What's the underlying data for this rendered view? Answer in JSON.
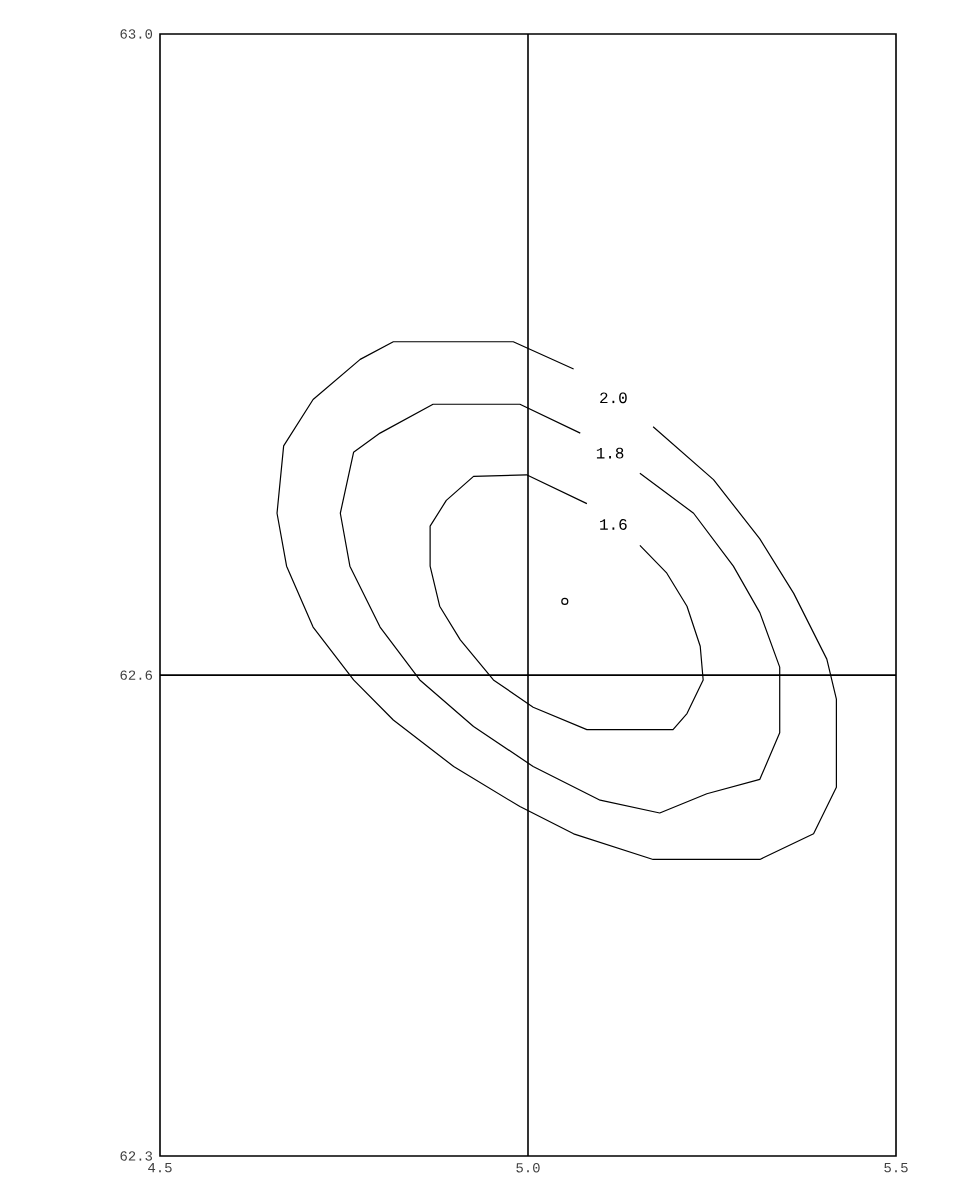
{
  "chart_data": {
    "type": "line",
    "marker": "none",
    "color": "#000000",
    "xlim": [
      4.5,
      5.5
    ],
    "ylim": [
      62.3,
      63.0
    ],
    "xticks": [
      4.5,
      {
        "value": 5.0,
        "label": "5.0"
      },
      5.5
    ],
    "yticks": [
      62.3,
      62.6,
      {
        "value": 63.0,
        "label": "63.0"
      }
    ],
    "ref_lines": [
      {
        "axis": "x",
        "value": 5.0
      },
      {
        "axis": "y",
        "value": 62.6
      }
    ],
    "series": [
      {
        "name": "2.0",
        "x": [
          5.17,
          5.252,
          5.315,
          5.361,
          5.406,
          5.419,
          5.419,
          5.388,
          5.315,
          5.17,
          5.062,
          4.989,
          4.899,
          4.817,
          4.763,
          4.708,
          4.672,
          4.659,
          4.668,
          4.708,
          4.772,
          4.817,
          4.98,
          5.062
        ],
        "values": [
          62.755,
          62.722,
          62.685,
          62.651,
          62.61,
          62.585,
          62.53,
          62.501,
          62.485,
          62.485,
          62.501,
          62.518,
          62.543,
          62.572,
          62.597,
          62.63,
          62.668,
          62.701,
          62.743,
          62.772,
          62.797,
          62.808,
          62.808,
          62.791
        ]
      },
      {
        "name": "1.8",
        "x": [
          5.152,
          5.225,
          5.279,
          5.315,
          5.342,
          5.342,
          5.315,
          5.243,
          5.179,
          5.098,
          5.007,
          4.926,
          4.853,
          4.799,
          4.758,
          4.745,
          4.763,
          4.799,
          4.871,
          4.989,
          5.071
        ],
        "values": [
          62.726,
          62.701,
          62.668,
          62.639,
          62.605,
          62.564,
          62.535,
          62.526,
          62.514,
          62.522,
          62.543,
          62.568,
          62.597,
          62.63,
          62.668,
          62.701,
          62.739,
          62.751,
          62.769,
          62.769,
          62.751
        ]
      },
      {
        "name": "1.6",
        "x": [
          5.152,
          5.188,
          5.216,
          5.234,
          5.238,
          5.216,
          5.197,
          5.08,
          5.007,
          4.953,
          4.908,
          4.88,
          4.867,
          4.867,
          4.889,
          4.926,
          4.998,
          5.08
        ],
        "values": [
          62.681,
          62.664,
          62.643,
          62.618,
          62.597,
          62.576,
          62.566,
          62.566,
          62.58,
          62.597,
          62.622,
          62.643,
          62.668,
          62.693,
          62.709,
          62.724,
          62.725,
          62.707
        ]
      },
      {
        "type": "scatter",
        "marker": "circle",
        "color": "#000000",
        "x": [
          5.05
        ],
        "values": [
          62.646
        ]
      }
    ]
  }
}
